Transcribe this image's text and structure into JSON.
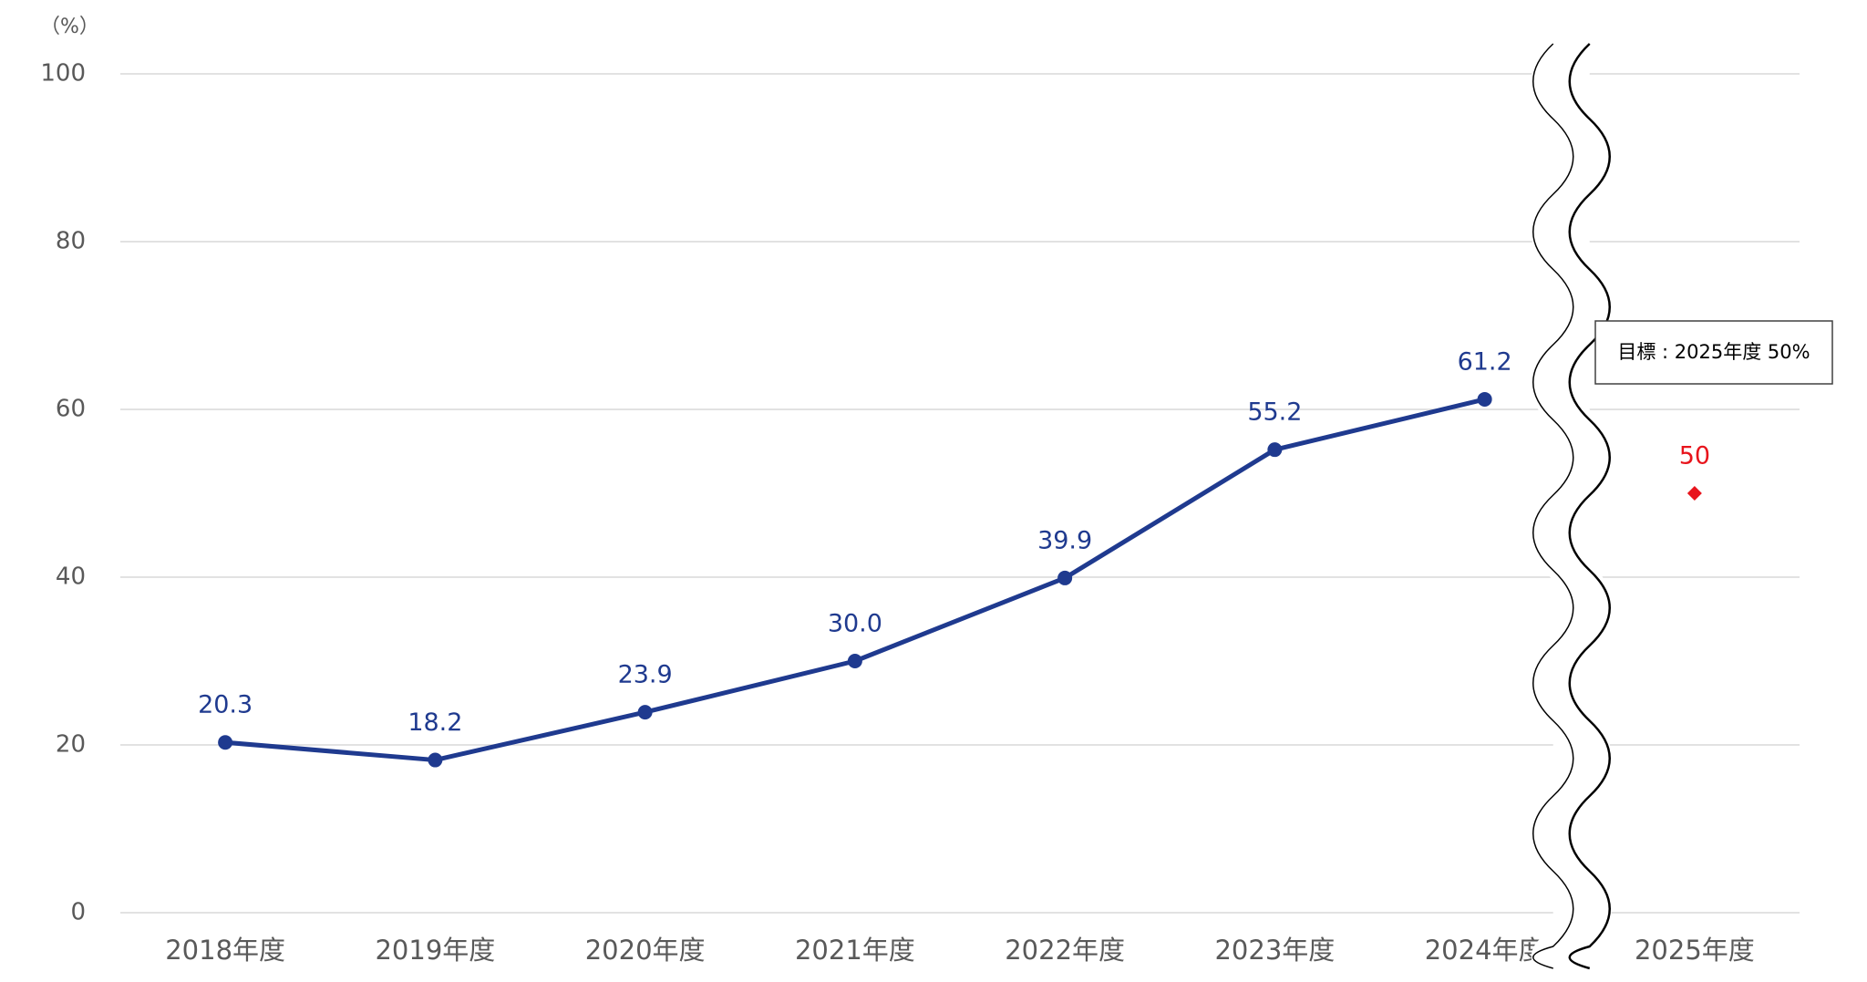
{
  "chart_data": {
    "type": "line",
    "y_unit_label": "（%）",
    "categories": [
      "2018年度",
      "2019年度",
      "2020年度",
      "2021年度",
      "2022年度",
      "2023年度",
      "2024年度",
      "2025年度"
    ],
    "series": [
      {
        "color": "#1f3a8f",
        "values": [
          20.3,
          18.2,
          23.9,
          30,
          39.9,
          55.2,
          61.2,
          null
        ],
        "value_labels": [
          "20.3",
          "18.2",
          "23.9",
          "30.0",
          "39.9",
          "55.2",
          "61.2",
          null
        ]
      },
      {
        "color": "#e8141c",
        "marker": "diamond",
        "values": [
          null,
          null,
          null,
          null,
          null,
          null,
          null,
          50
        ]
      }
    ],
    "annotation": "目標 : 2025年度 50%",
    "ylim": [
      0,
      100
    ],
    "yticks": [
      0,
      20,
      40,
      60,
      80,
      100
    ],
    "grid": true,
    "axis_break": true
  }
}
